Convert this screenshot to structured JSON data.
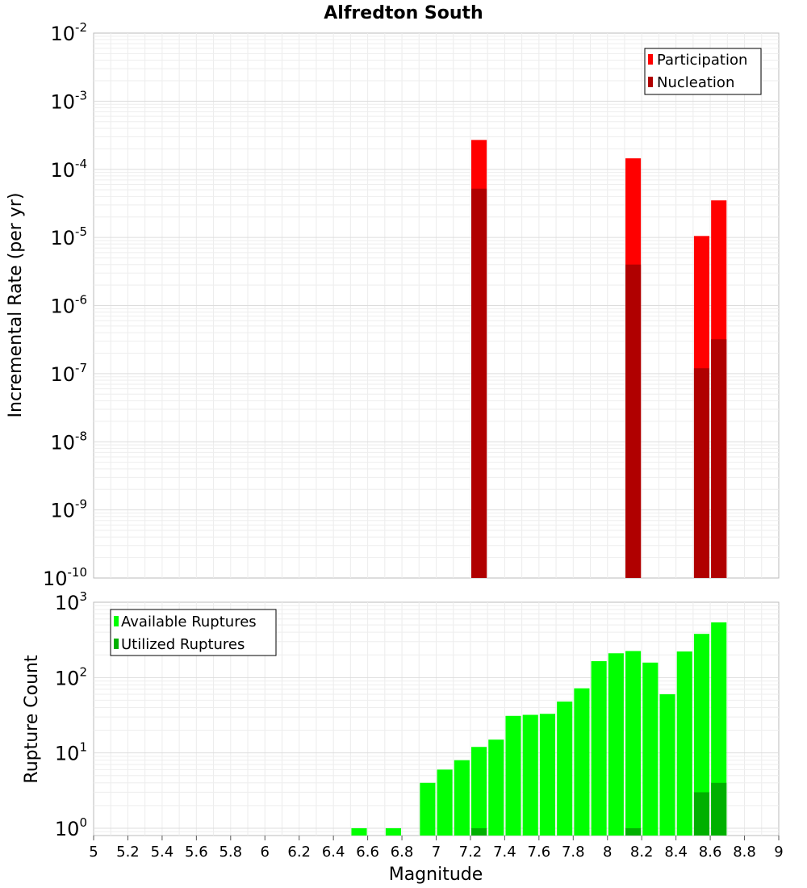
{
  "title": "Alfredton South",
  "xlabel": "Magnitude",
  "x_ticks": [
    "5",
    "5.2",
    "5.4",
    "5.6",
    "5.8",
    "6",
    "6.2",
    "6.4",
    "6.6",
    "6.8",
    "7",
    "7.2",
    "7.4",
    "7.6",
    "7.8",
    "8",
    "8.2",
    "8.4",
    "8.6",
    "8.8",
    "9"
  ],
  "chart_data": [
    {
      "type": "bar",
      "title": "Alfredton South",
      "ylabel": "Incremental Rate (per yr)",
      "xlim": [
        5,
        9
      ],
      "ylim": [
        1e-10,
        0.01
      ],
      "yscale": "log",
      "y_ticks": [
        {
          "base": "10",
          "exp": "-2",
          "value": 0.01
        },
        {
          "base": "10",
          "exp": "-3",
          "value": 0.001
        },
        {
          "base": "10",
          "exp": "-4",
          "value": 0.0001
        },
        {
          "base": "10",
          "exp": "-5",
          "value": 1e-05
        },
        {
          "base": "10",
          "exp": "-6",
          "value": 1e-06
        },
        {
          "base": "10",
          "exp": "-7",
          "value": 1e-07
        },
        {
          "base": "10",
          "exp": "-8",
          "value": 1e-08
        },
        {
          "base": "10",
          "exp": "-9",
          "value": 1e-09
        },
        {
          "base": "10",
          "exp": "-10",
          "value": 1e-10
        }
      ],
      "grid": true,
      "legend_position": "top-right",
      "series": [
        {
          "name": "Participation",
          "color": "#ff0000",
          "x": [
            7.25,
            8.15,
            8.55,
            8.65
          ],
          "values": [
            0.00027,
            0.000145,
            1.05e-05,
            3.5e-05
          ]
        },
        {
          "name": "Nucleation",
          "color": "#b00000",
          "x": [
            7.25,
            8.15,
            8.55,
            8.65
          ],
          "values": [
            5.2e-05,
            4e-06,
            1.2e-07,
            3.2e-07
          ]
        }
      ]
    },
    {
      "type": "bar",
      "ylabel": "Rupture Count",
      "xlim": [
        5,
        9
      ],
      "ylim": [
        0.8,
        1000
      ],
      "yscale": "log",
      "y_ticks": [
        {
          "base": "10",
          "exp": "3",
          "value": 1000
        },
        {
          "base": "10",
          "exp": "2",
          "value": 100
        },
        {
          "base": "10",
          "exp": "1",
          "value": 10
        },
        {
          "base": "10",
          "exp": "0",
          "value": 1
        }
      ],
      "grid": true,
      "legend_position": "top-left",
      "series": [
        {
          "name": "Available Ruptures",
          "color": "#00ff00",
          "x": [
            6.55,
            6.75,
            6.95,
            7.05,
            7.15,
            7.25,
            7.35,
            7.45,
            7.55,
            7.65,
            7.75,
            7.85,
            7.95,
            8.05,
            8.15,
            8.25,
            8.35,
            8.45,
            8.55,
            8.65
          ],
          "values": [
            1,
            1,
            4,
            6,
            8,
            12,
            15,
            31,
            32,
            33,
            48,
            72,
            165,
            210,
            225,
            158,
            60,
            222,
            380,
            540
          ]
        },
        {
          "name": "Utilized Ruptures",
          "color": "#00b000",
          "x": [
            7.25,
            8.15,
            8.55,
            8.65
          ],
          "values": [
            1,
            1,
            3,
            4
          ]
        }
      ]
    }
  ]
}
